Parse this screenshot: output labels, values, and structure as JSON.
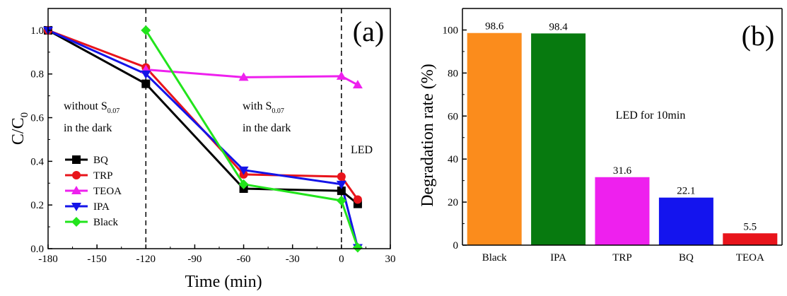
{
  "chart_data": [
    {
      "type": "line",
      "panel_label": "(a)",
      "xlabel": "Time (min)",
      "ylabel_main": "C/C",
      "ylabel_sub": "0",
      "xlim": [
        -180,
        30
      ],
      "ylim": [
        0.0,
        1.1
      ],
      "xticks": [
        -180,
        -150,
        -120,
        -90,
        -60,
        -30,
        0,
        30
      ],
      "yticks": [
        0.0,
        0.2,
        0.4,
        0.6,
        0.8,
        1.0
      ],
      "ytick_labels": [
        "0.0",
        "0.2",
        "0.4",
        "0.6",
        "0.8",
        "1.0"
      ],
      "vlines": [
        -120,
        0
      ],
      "annotations": {
        "dark_without_line1": "without S",
        "dark_without_sub": "0.07",
        "dark_without_line2": "in the dark",
        "dark_with_line1": "with S",
        "dark_with_sub": "0.07",
        "dark_with_line2": "in the dark",
        "led": "LED"
      },
      "legend_position": "lower-left",
      "series": [
        {
          "name": "BQ",
          "color": "#000000",
          "marker": "square",
          "x": [
            -180,
            -120,
            -60,
            0,
            10
          ],
          "y": [
            1.0,
            0.755,
            0.275,
            0.265,
            0.205
          ]
        },
        {
          "name": "TRP",
          "color": "#e8141b",
          "marker": "circle",
          "x": [
            -180,
            -120,
            -60,
            0,
            10
          ],
          "y": [
            1.0,
            0.83,
            0.34,
            0.33,
            0.225
          ]
        },
        {
          "name": "TEOA",
          "color": "#ee20ee",
          "marker": "triangle-up",
          "x": [
            -120,
            -60,
            0,
            10
          ],
          "y": [
            0.82,
            0.785,
            0.79,
            0.75
          ]
        },
        {
          "name": "IPA",
          "color": "#1414e8",
          "marker": "triangle-down",
          "x": [
            -180,
            -120,
            -60,
            0,
            10
          ],
          "y": [
            1.0,
            0.8,
            0.36,
            0.295,
            0.005
          ]
        },
        {
          "name": "Black",
          "color": "#22e41c",
          "marker": "diamond",
          "x": [
            -120,
            -60,
            0,
            10
          ],
          "y": [
            1.0,
            0.295,
            0.22,
            0.005
          ]
        }
      ]
    },
    {
      "type": "bar",
      "panel_label": "(b)",
      "ylabel": "Degradation rate (%)",
      "ylim": [
        0,
        110
      ],
      "yticks": [
        0,
        20,
        40,
        60,
        80,
        100
      ],
      "annotation": "LED for 10min",
      "categories": [
        "Black",
        "IPA",
        "TRP",
        "BQ",
        "TEOA"
      ],
      "values": [
        98.6,
        98.4,
        31.6,
        22.1,
        5.5
      ],
      "value_labels": [
        "98.6",
        "98.4",
        "31.6",
        "22.1",
        "5.5"
      ],
      "colors": [
        "#fb8c1c",
        "#077a0f",
        "#ee20ee",
        "#1414ee",
        "#e8141b"
      ]
    }
  ]
}
